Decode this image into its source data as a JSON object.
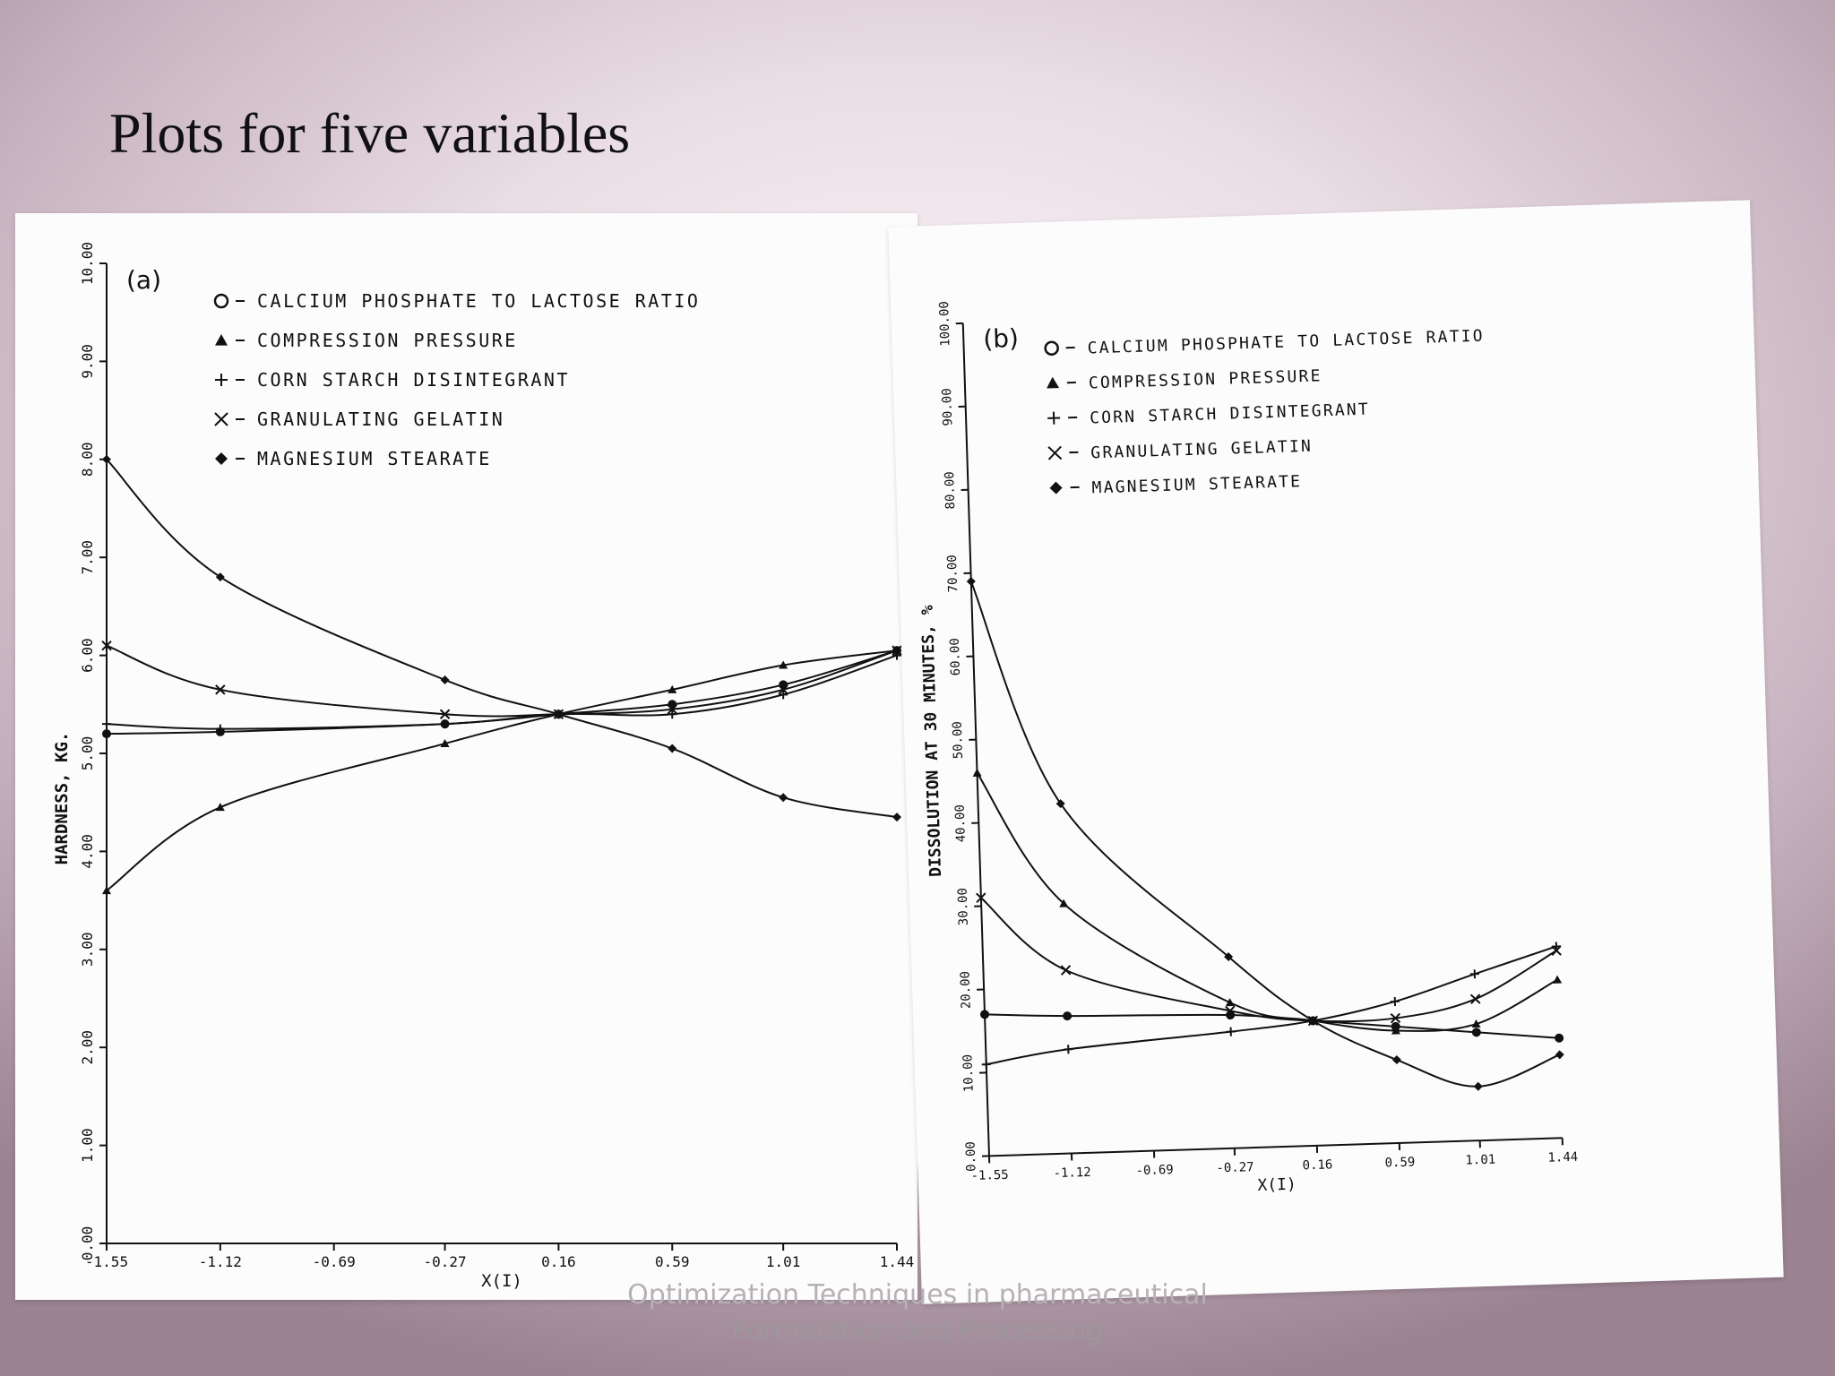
{
  "slide": {
    "title": "Plots for five variables",
    "footer_line1": "Optimization Techniques in pharmaceutical",
    "footer_line2": "Formulation and Processing"
  },
  "chart_data": [
    {
      "type": "line",
      "panel_label": "(a)",
      "xlabel": "X(I)",
      "ylabel": "HARDNESS, KG.",
      "x": [
        -1.55,
        -1.12,
        -0.69,
        -0.27,
        0.16,
        0.59,
        1.01,
        1.44
      ],
      "x_tick_labels": [
        "-1.55",
        "-1.12",
        "-0.69",
        "-0.27",
        "0.16",
        "0.59",
        "1.01",
        "1.44"
      ],
      "y_tick_labels": [
        "0.00",
        "1.00",
        "2.00",
        "3.00",
        "4.00",
        "5.00",
        "6.00",
        "7.00",
        "8.00",
        "9.00",
        "10.00"
      ],
      "ylim": [
        0,
        10
      ],
      "legend_position": "top",
      "series": [
        {
          "name": "CALCIUM PHOSPHATE TO LACTOSE RATIO",
          "marker": "circle",
          "points": [
            [
              -1.55,
              5.2
            ],
            [
              -1.12,
              5.22
            ],
            [
              -0.27,
              5.3
            ],
            [
              0.16,
              5.4
            ],
            [
              0.59,
              5.5
            ],
            [
              1.01,
              5.7
            ],
            [
              1.44,
              6.05
            ]
          ]
        },
        {
          "name": "COMPRESSION PRESSURE",
          "marker": "triangle",
          "points": [
            [
              -1.55,
              3.6
            ],
            [
              -1.12,
              4.45
            ],
            [
              -0.27,
              5.1
            ],
            [
              0.16,
              5.4
            ],
            [
              0.59,
              5.65
            ],
            [
              1.01,
              5.9
            ],
            [
              1.44,
              6.05
            ]
          ]
        },
        {
          "name": "CORN STARCH DISINTEGRANT",
          "marker": "plus",
          "points": [
            [
              -1.55,
              5.3
            ],
            [
              -1.12,
              5.25
            ],
            [
              -0.27,
              5.3
            ],
            [
              0.16,
              5.4
            ],
            [
              0.59,
              5.4
            ],
            [
              1.01,
              5.6
            ],
            [
              1.44,
              6.0
            ]
          ]
        },
        {
          "name": "GRANULATING GELATIN",
          "marker": "cross",
          "points": [
            [
              -1.55,
              6.1
            ],
            [
              -1.12,
              5.65
            ],
            [
              -0.27,
              5.4
            ],
            [
              0.16,
              5.4
            ],
            [
              0.59,
              5.45
            ],
            [
              1.01,
              5.65
            ],
            [
              1.44,
              6.05
            ]
          ]
        },
        {
          "name": "MAGNESIUM STEARATE",
          "marker": "diamond",
          "points": [
            [
              -1.55,
              8.0
            ],
            [
              -1.12,
              6.8
            ],
            [
              -0.27,
              5.75
            ],
            [
              0.16,
              5.4
            ],
            [
              0.59,
              5.05
            ],
            [
              1.01,
              4.55
            ],
            [
              1.44,
              4.35
            ]
          ]
        }
      ]
    },
    {
      "type": "line",
      "panel_label": "(b)",
      "xlabel": "X(I)",
      "ylabel": "DISSOLUTION AT 30 MINUTES, %",
      "x": [
        -1.55,
        -1.12,
        -0.69,
        -0.27,
        0.16,
        0.59,
        1.01,
        1.44
      ],
      "x_tick_labels": [
        "-1.55",
        "-1.12",
        "-0.69",
        "-0.27",
        "0.16",
        "0.59",
        "1.01",
        "1.44"
      ],
      "y_tick_labels": [
        "0.00",
        "10.00",
        "20.00",
        "30.00",
        "40.00",
        "50.00",
        "60.00",
        "70.00",
        "80.00",
        "90.00",
        "100.00"
      ],
      "ylim": [
        0,
        100
      ],
      "legend_position": "top",
      "series": [
        {
          "name": "CALCIUM PHOSPHATE TO LACTOSE RATIO",
          "marker": "circle",
          "points": [
            [
              -1.55,
              17.0
            ],
            [
              -1.12,
              16.5
            ],
            [
              -0.27,
              16.0
            ],
            [
              0.16,
              15.0
            ],
            [
              0.59,
              14.0
            ],
            [
              1.01,
              13.0
            ],
            [
              1.44,
              12.0
            ]
          ]
        },
        {
          "name": "COMPRESSION PRESSURE",
          "marker": "triangle",
          "points": [
            [
              -1.55,
              46.0
            ],
            [
              -1.12,
              30.0
            ],
            [
              -0.27,
              17.5
            ],
            [
              0.16,
              15.0
            ],
            [
              0.59,
              13.5
            ],
            [
              1.01,
              14.0
            ],
            [
              1.44,
              19.0
            ]
          ]
        },
        {
          "name": "CORN STARCH DISINTEGRANT",
          "marker": "plus",
          "points": [
            [
              -1.55,
              11.0
            ],
            [
              -1.12,
              12.5
            ],
            [
              -0.27,
              14.0
            ],
            [
              0.16,
              15.0
            ],
            [
              0.59,
              17.0
            ],
            [
              1.01,
              20.0
            ],
            [
              1.44,
              23.0
            ]
          ]
        },
        {
          "name": "GRANULATING GELATIN",
          "marker": "cross",
          "points": [
            [
              -1.55,
              31.0
            ],
            [
              -1.12,
              22.0
            ],
            [
              -0.27,
              16.5
            ],
            [
              0.16,
              15.0
            ],
            [
              0.59,
              15.0
            ],
            [
              1.01,
              17.0
            ],
            [
              1.44,
              22.5
            ]
          ]
        },
        {
          "name": "MAGNESIUM STEARATE",
          "marker": "diamond",
          "points": [
            [
              -1.55,
              69.0
            ],
            [
              -1.12,
              42.0
            ],
            [
              -0.27,
              23.0
            ],
            [
              0.16,
              15.0
            ],
            [
              0.59,
              10.0
            ],
            [
              1.01,
              6.5
            ],
            [
              1.44,
              10.0
            ]
          ]
        }
      ]
    }
  ]
}
